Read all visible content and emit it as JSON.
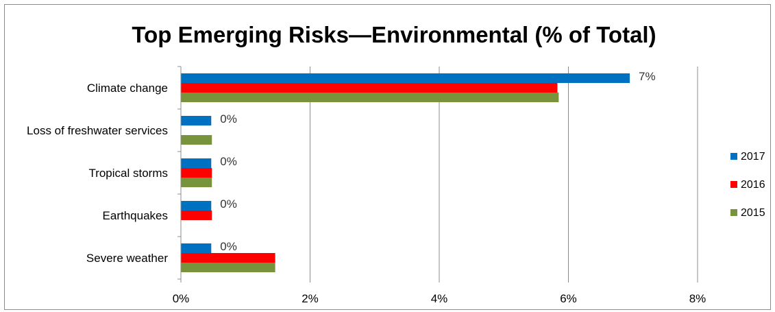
{
  "chart_data": {
    "type": "bar",
    "orientation": "horizontal",
    "title": "Top Emerging Risks—Environmental (% of Total)",
    "xlabel": "",
    "ylabel": "",
    "categories": [
      "Climate change",
      "Loss of freshwater services",
      "Tropical storms",
      "Earthquakes",
      "Severe weather"
    ],
    "series": [
      {
        "name": "2017",
        "color": "#0070C0",
        "values": [
          6.95,
          0.47,
          0.47,
          0.47,
          0.47
        ],
        "labels": [
          "7%",
          "0%",
          "0%",
          "0%",
          "0%"
        ]
      },
      {
        "name": "2016",
        "color": "#FF0000",
        "values": [
          5.83,
          0,
          0.48,
          0.48,
          1.46
        ]
      },
      {
        "name": "2015",
        "color": "#77933C",
        "values": [
          5.85,
          0.48,
          0.48,
          0,
          1.46
        ]
      }
    ],
    "xlim": [
      0,
      8
    ],
    "xticks": [
      0,
      2,
      4,
      6,
      8
    ],
    "xtick_labels": [
      "0%",
      "2%",
      "4%",
      "6%",
      "8%"
    ],
    "grid": true,
    "legend_position": "right"
  }
}
